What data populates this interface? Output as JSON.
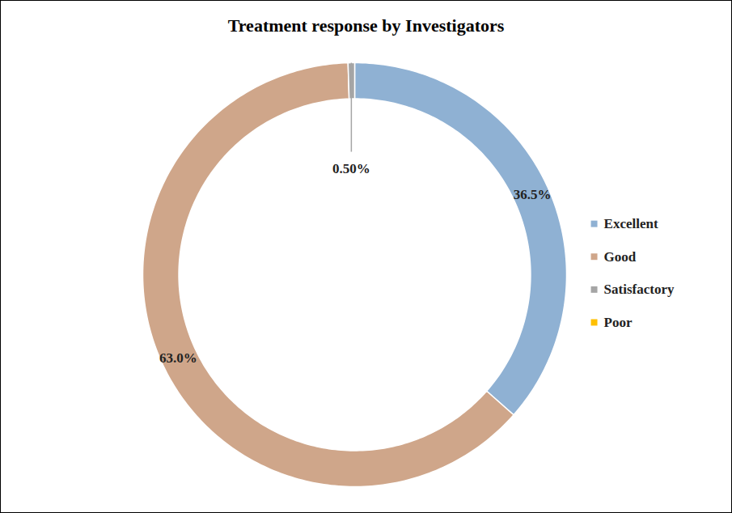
{
  "chart_data": {
    "type": "donut",
    "title": "Treatment response by Investigators",
    "categories": [
      "Excellent",
      "Good",
      "Satisfactory",
      "Poor"
    ],
    "values": [
      36.5,
      63.0,
      0.5,
      0
    ],
    "value_labels": [
      "36.5%",
      "63.0%",
      "0.50%",
      null
    ],
    "colors": [
      "#8fb1d3",
      "#cfa68a",
      "#a5a5a5",
      "#ffc000"
    ],
    "data_labels": true,
    "legend": "right"
  }
}
